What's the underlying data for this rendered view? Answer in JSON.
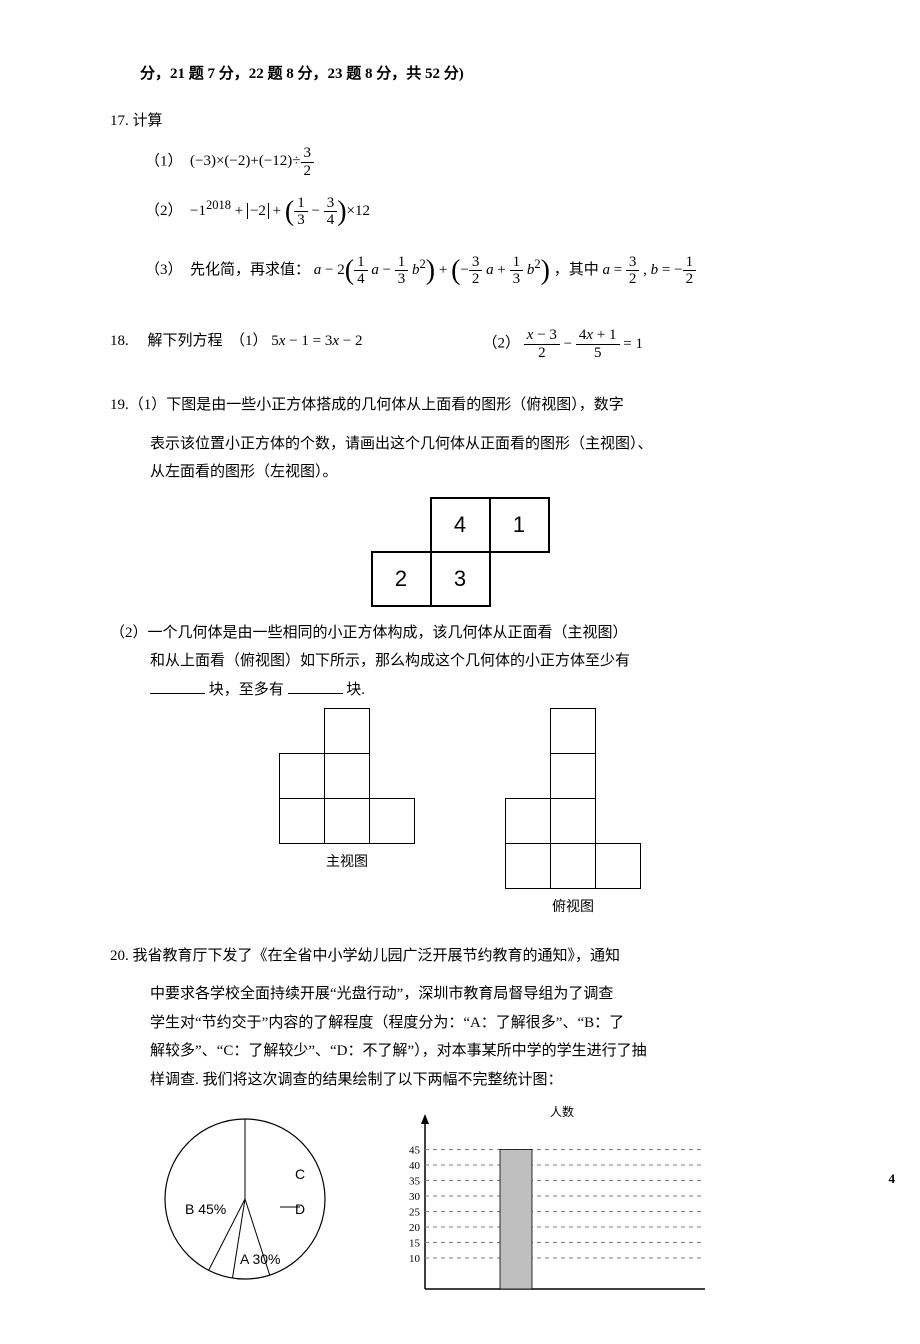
{
  "header": "分，21 题 7 分，22 题 8 分，23 题 8 分，共 52 分)",
  "q17": {
    "stem": "17. 计算",
    "p1_label": "（1）",
    "p2_label": "（2）",
    "p3_label": "（3）",
    "p3_prefix": "先化简，再求值：",
    "p3_tail": "，其中"
  },
  "q18": {
    "stem": "18.　 解下列方程　（1）",
    "eq1_lhs": "5x − 1 = 3x − 2",
    "p2_label": "（2）"
  },
  "q19": {
    "stem": "19.（1）下图是由一些小正方体搭成的几何体从上面看的图形（俯视图），数字",
    "line2": "表示该位置小正方体的个数，请画出这个几何体从正面看的图形（主视图）、",
    "line3": "从左面看的图形（左视图）。",
    "grid": [
      [
        "",
        "4",
        "1"
      ],
      [
        "2",
        "3",
        ""
      ]
    ],
    "p2a": "（2）一个几何体是由一些相同的小正方体构成，该几何体从正面看（主视图）",
    "p2b": "和从上面看（俯视图）如下所示，那么构成这个几何体的小正方体至少有",
    "p2c_a": "块，至多有",
    "p2c_b": "块.",
    "front_caption": "主视图",
    "top_caption": "俯视图",
    "front_shape": [
      [
        0,
        1,
        0
      ],
      [
        1,
        1,
        0
      ],
      [
        1,
        1,
        1
      ]
    ],
    "top_shape": [
      [
        0,
        1,
        0
      ],
      [
        0,
        1,
        0
      ],
      [
        1,
        1,
        0
      ],
      [
        1,
        1,
        1
      ]
    ]
  },
  "q20": {
    "l1": "20. 我省教育厅下发了《在全省中小学幼儿园广泛开展节约教育的通知》，通知",
    "l2": "中要求各学校全面持续开展“光盘行动”，深圳市教育局督导组为了调查",
    "l3": "学生对“节约交于”内容的了解程度（程度分为：“A：了解很多”、“B：了",
    "l4": "解较多”、“C：了解较少”、“D：不了解”），对本事某所中学的学生进行了抽",
    "l5": "样调查. 我们将这次调查的结果绘制了以下两幅不完整统计图："
  },
  "pie": {
    "labels": {
      "A": "A  30%",
      "B": "B  45%",
      "C": "C",
      "D": "D"
    },
    "slice_B": 45,
    "slice_A": 30,
    "colors": {
      "fill": "#ffffff",
      "stroke": "#000000"
    }
  },
  "bar": {
    "ylabel": "人数",
    "yticks": [
      10,
      15,
      20,
      25,
      30,
      35,
      40,
      45
    ],
    "bar_value": 45,
    "bar_color": "#bfbfbf",
    "grid_color": "#808080"
  },
  "page_number": "4"
}
